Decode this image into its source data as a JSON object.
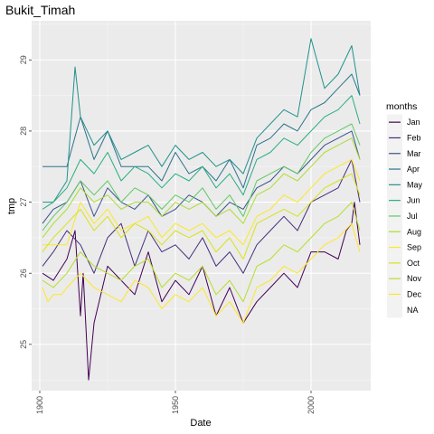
{
  "chart_data": {
    "type": "line",
    "title": "Bukit_Timah",
    "xlabel": "Date",
    "ylabel": "tmp",
    "xlim": [
      1897,
      2022
    ],
    "ylim": [
      24.35,
      29.55
    ],
    "x_ticks": [
      1900,
      1950,
      2000
    ],
    "y_ticks": [
      25,
      26,
      27,
      28,
      29
    ],
    "grid": true,
    "legend_title": "months",
    "legend_position": "right",
    "series": [
      {
        "name": "Jan",
        "color": "#440154",
        "x": [
          1901,
          1905,
          1910,
          1913,
          1915,
          1916,
          1918,
          1920,
          1925,
          1930,
          1935,
          1940,
          1945,
          1950,
          1955,
          1960,
          1965,
          1970,
          1975,
          1980,
          1985,
          1990,
          1995,
          2000,
          2005,
          2010,
          2013,
          2015,
          2016,
          2018
        ],
        "y": [
          26.0,
          25.9,
          26.2,
          26.6,
          25.4,
          26.0,
          24.5,
          25.3,
          26.1,
          25.9,
          25.7,
          26.3,
          25.6,
          25.9,
          25.7,
          26.1,
          25.4,
          25.8,
          25.3,
          25.6,
          25.8,
          26.0,
          25.8,
          26.3,
          26.3,
          26.2,
          26.6,
          26.7,
          27.0,
          26.4
        ]
      },
      {
        "name": "Feb",
        "color": "#472d7b",
        "x": [
          1901,
          1905,
          1910,
          1915,
          1920,
          1925,
          1930,
          1935,
          1940,
          1945,
          1950,
          1955,
          1960,
          1965,
          1970,
          1975,
          1980,
          1985,
          1990,
          1995,
          2000,
          2005,
          2010,
          2015,
          2018
        ],
        "y": [
          26.1,
          26.3,
          26.6,
          26.4,
          26.0,
          26.5,
          26.7,
          26.1,
          26.6,
          26.3,
          26.4,
          26.2,
          26.5,
          26.1,
          26.3,
          26.0,
          26.4,
          26.6,
          26.8,
          26.6,
          27.0,
          27.1,
          27.2,
          27.6,
          27.0
        ]
      },
      {
        "name": "Mar",
        "color": "#3b528b",
        "x": [
          1901,
          1905,
          1910,
          1915,
          1920,
          1925,
          1930,
          1935,
          1940,
          1945,
          1950,
          1955,
          1960,
          1965,
          1970,
          1975,
          1980,
          1985,
          1990,
          1995,
          2000,
          2005,
          2010,
          2015,
          2018
        ],
        "y": [
          26.7,
          26.9,
          27.0,
          27.3,
          26.8,
          27.2,
          27.0,
          26.9,
          27.1,
          26.8,
          26.9,
          27.1,
          27.0,
          26.8,
          27.0,
          26.9,
          27.2,
          27.3,
          27.5,
          27.4,
          27.6,
          27.8,
          27.9,
          28.0,
          27.6
        ]
      },
      {
        "name": "Apr",
        "color": "#2c728e",
        "x": [
          1901,
          1905,
          1910,
          1915,
          1920,
          1925,
          1930,
          1935,
          1940,
          1945,
          1950,
          1955,
          1960,
          1965,
          1970,
          1975,
          1980,
          1985,
          1990,
          1995,
          2000,
          2005,
          2010,
          2015,
          2018
        ],
        "y": [
          27.5,
          27.5,
          27.5,
          28.2,
          27.6,
          28.0,
          27.5,
          27.5,
          27.5,
          27.3,
          27.7,
          27.4,
          27.5,
          27.3,
          27.6,
          27.2,
          27.8,
          27.9,
          28.1,
          28.0,
          28.3,
          28.4,
          28.6,
          28.8,
          28.5
        ]
      },
      {
        "name": "May",
        "color": "#21918c",
        "x": [
          1901,
          1905,
          1910,
          1913,
          1915,
          1920,
          1925,
          1930,
          1935,
          1940,
          1945,
          1950,
          1955,
          1960,
          1965,
          1970,
          1975,
          1980,
          1985,
          1990,
          1995,
          2000,
          2005,
          2010,
          2015,
          2018
        ],
        "y": [
          27.0,
          27.0,
          27.3,
          28.9,
          28.2,
          27.8,
          28.0,
          27.6,
          27.7,
          27.8,
          27.5,
          27.8,
          27.6,
          27.7,
          27.5,
          27.6,
          27.4,
          27.9,
          28.1,
          28.3,
          28.2,
          29.3,
          28.6,
          28.8,
          29.2,
          28.5
        ]
      },
      {
        "name": "Jun",
        "color": "#28ae80",
        "x": [
          1901,
          1905,
          1910,
          1915,
          1920,
          1925,
          1930,
          1935,
          1940,
          1945,
          1950,
          1955,
          1960,
          1965,
          1970,
          1975,
          1980,
          1985,
          1990,
          1995,
          2000,
          2005,
          2010,
          2015,
          2018
        ],
        "y": [
          26.9,
          27.0,
          27.2,
          27.6,
          27.4,
          27.7,
          27.3,
          27.5,
          27.4,
          27.2,
          27.4,
          27.3,
          27.5,
          27.2,
          27.4,
          27.1,
          27.6,
          27.7,
          27.9,
          27.8,
          28.0,
          28.2,
          28.3,
          28.5,
          28.1
        ]
      },
      {
        "name": "Jul",
        "color": "#5ec962",
        "x": [
          1901,
          1905,
          1910,
          1915,
          1920,
          1925,
          1930,
          1935,
          1940,
          1945,
          1950,
          1955,
          1960,
          1965,
          1970,
          1975,
          1980,
          1985,
          1990,
          1995,
          2000,
          2005,
          2010,
          2015,
          2018
        ],
        "y": [
          26.6,
          26.8,
          27.0,
          27.3,
          27.1,
          27.3,
          27.0,
          27.2,
          27.1,
          26.9,
          27.1,
          27.0,
          27.2,
          26.9,
          27.1,
          26.8,
          27.3,
          27.4,
          27.5,
          27.4,
          27.7,
          27.9,
          28.0,
          28.1,
          27.8
        ]
      },
      {
        "name": "Aug",
        "color": "#addc30",
        "x": [
          1901,
          1905,
          1910,
          1915,
          1920,
          1925,
          1930,
          1935,
          1940,
          1945,
          1950,
          1955,
          1960,
          1965,
          1970,
          1975,
          1980,
          1985,
          1990,
          1995,
          2000,
          2005,
          2010,
          2015,
          2018
        ],
        "y": [
          26.5,
          26.7,
          26.9,
          27.2,
          27.0,
          27.1,
          26.9,
          27.0,
          27.0,
          26.8,
          27.0,
          26.9,
          27.0,
          26.8,
          26.9,
          26.7,
          27.1,
          27.2,
          27.4,
          27.3,
          27.5,
          27.7,
          27.8,
          27.9,
          27.6
        ]
      },
      {
        "name": "Sep",
        "color": "#fde725",
        "x": [
          1901,
          1905,
          1910,
          1915,
          1920,
          1925,
          1930,
          1935,
          1940,
          1945,
          1950,
          1955,
          1960,
          1965,
          1970,
          1975,
          1980,
          1985,
          1990,
          1995,
          2000,
          2005,
          2010,
          2015,
          2018
        ],
        "y": [
          26.4,
          26.4,
          26.4,
          27.0,
          26.7,
          26.9,
          26.6,
          26.7,
          26.8,
          26.5,
          26.7,
          26.6,
          26.7,
          26.5,
          26.6,
          26.4,
          26.8,
          26.9,
          27.1,
          27.0,
          27.2,
          27.4,
          27.5,
          27.6,
          27.3
        ]
      },
      {
        "name": "Oct",
        "color": "#d8e219",
        "x": [
          1901,
          1905,
          1910,
          1915,
          1920,
          1925,
          1930,
          1935,
          1940,
          1945,
          1950,
          1955,
          1960,
          1965,
          1970,
          1975,
          1980,
          1985,
          1990,
          1995,
          2000,
          2005,
          2010,
          2015,
          2018
        ],
        "y": [
          26.3,
          26.5,
          26.7,
          26.9,
          26.6,
          26.8,
          26.5,
          26.7,
          26.6,
          26.4,
          26.6,
          26.5,
          26.6,
          26.3,
          26.5,
          26.2,
          26.7,
          26.8,
          26.9,
          26.8,
          27.0,
          27.2,
          27.3,
          27.4,
          27.1
        ]
      },
      {
        "name": "Nov",
        "color": "#b8de29",
        "x": [
          1901,
          1905,
          1910,
          1915,
          1920,
          1925,
          1930,
          1935,
          1940,
          1945,
          1950,
          1955,
          1960,
          1965,
          1970,
          1975,
          1980,
          1985,
          1990,
          1995,
          2000,
          2005,
          2010,
          2015,
          2018
        ],
        "y": [
          25.9,
          25.8,
          26.0,
          26.3,
          26.1,
          26.0,
          25.9,
          26.1,
          26.2,
          25.8,
          26.0,
          25.9,
          26.1,
          25.7,
          25.9,
          25.6,
          26.1,
          26.2,
          26.4,
          26.3,
          26.5,
          26.7,
          26.8,
          27.0,
          26.6
        ]
      },
      {
        "name": "Dec",
        "color": "#fde725",
        "x": [
          1901,
          1903,
          1905,
          1908,
          1910,
          1915,
          1920,
          1925,
          1930,
          1935,
          1940,
          1945,
          1950,
          1955,
          1960,
          1965,
          1970,
          1975,
          1980,
          1985,
          1990,
          1995,
          2000,
          2005,
          2010,
          2015,
          2018
        ],
        "y": [
          25.8,
          25.6,
          25.7,
          25.7,
          25.8,
          26.0,
          25.8,
          25.7,
          25.6,
          25.9,
          25.8,
          25.5,
          25.7,
          25.6,
          25.8,
          25.4,
          25.6,
          25.3,
          25.8,
          25.9,
          26.1,
          26.0,
          26.2,
          26.4,
          26.5,
          26.7,
          26.3
        ]
      },
      {
        "name": "NA",
        "color": "#f2f2f2",
        "x": [],
        "y": []
      }
    ]
  }
}
